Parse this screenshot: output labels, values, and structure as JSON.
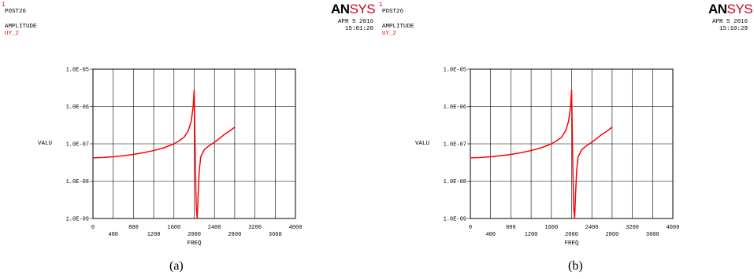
{
  "panels": [
    {
      "window_number": "1",
      "program": "POST26",
      "quantity": "AMPLITUDE",
      "variable": "UY_2",
      "logo": {
        "an": "AN",
        "sys": "SYS"
      },
      "date": "APR  5 2016",
      "time": "15:01:20",
      "caption": "(a)"
    },
    {
      "window_number": "1",
      "program": "POST26",
      "quantity": "AMPLITUDE",
      "variable": "UY_2",
      "logo": {
        "an": "AN",
        "sys": "SYS"
      },
      "date": "APR  5 2016",
      "time": "15:10:29",
      "caption": "(b)"
    }
  ],
  "colors": {
    "curve": "#ff0000",
    "grid": "#000000",
    "logo_sys": "#d4001a",
    "label_red": "#ff0000"
  },
  "chart_data": [
    {
      "type": "line",
      "xlabel": "FREQ",
      "ylabel": "VALU",
      "xlim": [
        0,
        4000
      ],
      "ylim": [
        1e-09,
        1e-05
      ],
      "yscale": "log",
      "xticks": [
        0,
        400,
        800,
        1200,
        1600,
        2000,
        2400,
        2800,
        3200,
        3600,
        4000
      ],
      "xtick_labels": [
        "0",
        "400",
        "800",
        "1200",
        "1600",
        "2000",
        "2400",
        "2800",
        "3200",
        "3600",
        "4000"
      ],
      "yticks": [
        1e-09,
        1e-08,
        1e-07,
        1e-06,
        1e-05
      ],
      "ytick_labels": [
        "1.0E-09",
        "1.0E-08",
        "1.0E-07",
        "1.0E-06",
        "1.0E-05"
      ],
      "grid": true,
      "series": [
        {
          "x": [
            0,
            200,
            400,
            600,
            800,
            1000,
            1200,
            1400,
            1600,
            1700,
            1800,
            1880,
            1940,
            1980,
            2000,
            2010,
            2025,
            2040,
            2060,
            2080,
            2100,
            2130,
            2200,
            2300,
            2400,
            2500,
            2600,
            2700,
            2800
          ],
          "y": [
            4.2e-08,
            4.3e-08,
            4.5e-08,
            4.8e-08,
            5.2e-08,
            5.8e-08,
            6.6e-08,
            7.8e-08,
            1e-07,
            1.2e-07,
            1.5e-07,
            2.2e-07,
            4e-07,
            1e-06,
            2.8e-06,
            4e-07,
            2e-08,
            2e-09,
            1e-09,
            5e-09,
            2e-08,
            4.5e-08,
            7e-08,
            9e-08,
            1.1e-07,
            1.4e-07,
            1.8e-07,
            2.2e-07,
            2.8e-07
          ]
        }
      ]
    },
    {
      "type": "line",
      "xlabel": "FREQ",
      "ylabel": "VALU",
      "xlim": [
        0,
        4000
      ],
      "ylim": [
        1e-09,
        1e-05
      ],
      "yscale": "log",
      "xticks": [
        0,
        400,
        800,
        1200,
        1600,
        2000,
        2400,
        2800,
        3200,
        3600,
        4000
      ],
      "xtick_labels": [
        "0",
        "400",
        "800",
        "1200",
        "1600",
        "2000",
        "2400",
        "2800",
        "3200",
        "3600",
        "4000"
      ],
      "yticks": [
        1e-09,
        1e-08,
        1e-07,
        1e-06,
        1e-05
      ],
      "ytick_labels": [
        "1.0E-09",
        "1.0E-08",
        "1.0E-07",
        "1.0E-06",
        "1.0E-05"
      ],
      "grid": true,
      "series": [
        {
          "x": [
            0,
            200,
            400,
            600,
            800,
            1000,
            1200,
            1400,
            1600,
            1700,
            1800,
            1880,
            1940,
            1980,
            2000,
            2010,
            2025,
            2040,
            2060,
            2080,
            2100,
            2130,
            2200,
            2300,
            2400,
            2500,
            2600,
            2700,
            2800
          ],
          "y": [
            4.2e-08,
            4.3e-08,
            4.5e-08,
            4.8e-08,
            5.2e-08,
            5.8e-08,
            6.6e-08,
            7.8e-08,
            1e-07,
            1.2e-07,
            1.5e-07,
            2.2e-07,
            4e-07,
            1e-06,
            2.8e-06,
            4e-07,
            2e-08,
            2e-09,
            1e-09,
            5e-09,
            2e-08,
            4.5e-08,
            7e-08,
            9e-08,
            1.1e-07,
            1.4e-07,
            1.8e-07,
            2.2e-07,
            2.8e-07
          ]
        }
      ]
    }
  ]
}
